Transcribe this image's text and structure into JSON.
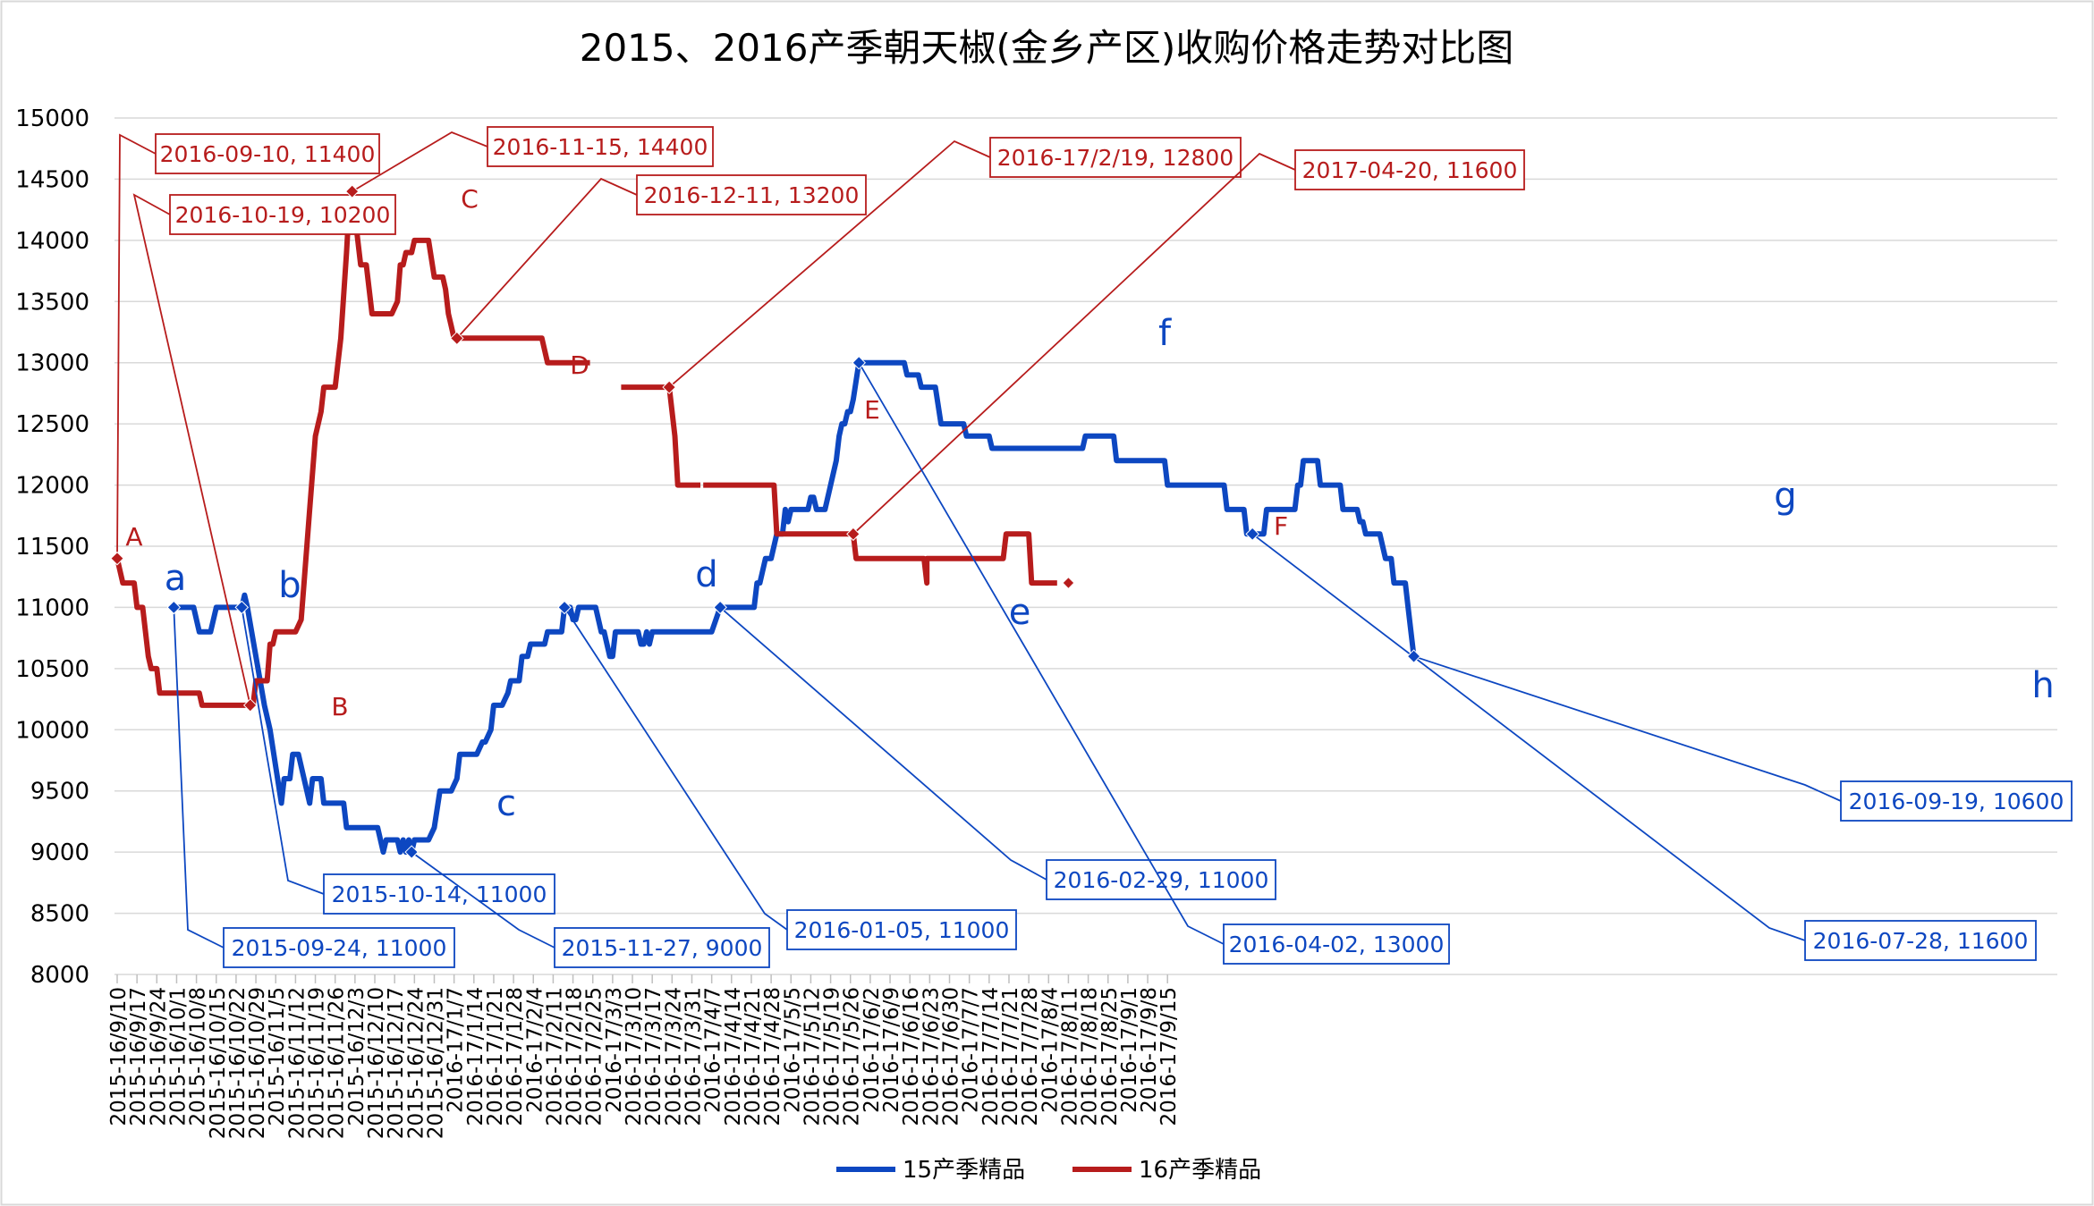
{
  "chart_data": {
    "type": "line",
    "title": "2015、2016产季朝天椒(金乡产区)收购价格走势对比图",
    "xlabel": "",
    "ylabel": "",
    "ylim": [
      8000,
      15000
    ],
    "y_ticks": [
      "8000",
      "8500",
      "9000",
      "9500",
      "10000",
      "10500",
      "11000",
      "11500",
      "12000",
      "12500",
      "13000",
      "13500",
      "14000",
      "14500",
      "15000"
    ],
    "grid": "horizontal",
    "legend_position": "bottom",
    "x_labels": [
      "2015-16/9/10",
      "2015-16/9/17",
      "2015-16/9/24",
      "2015-16/10/1",
      "2015-16/10/8",
      "2015-16/10/15",
      "2015-16/10/22",
      "2015-16/10/29",
      "2015-16/11/5",
      "2015-16/11/12",
      "2015-16/11/19",
      "2015-16/11/26",
      "2015-16/12/3",
      "2015-16/12/10",
      "2015-16/12/17",
      "2015-16/12/24",
      "2015-16/12/31",
      "2016-17/1/7",
      "2016-17/1/14",
      "2016-17/1/21",
      "2016-17/1/28",
      "2016-17/2/4",
      "2016-17/2/11",
      "2016-17/2/18",
      "2016-17/2/25",
      "2016-17/3/3",
      "2016-17/3/10",
      "2016-17/3/17",
      "2016-17/3/24",
      "2016-17/3/31",
      "2016-17/4/7",
      "2016-17/4/14",
      "2016-17/4/21",
      "2016-17/4/28",
      "2016-17/5/5",
      "2016-17/5/12",
      "2016-17/5/19",
      "2016-17/5/26",
      "2016-17/6/2",
      "2016-17/6/9",
      "2016-17/6/16",
      "2016-17/6/23",
      "2016-17/6/30",
      "2016-17/7/7",
      "2016-17/7/14",
      "2016-17/7/21",
      "2016-17/7/28",
      "2016-17/8/4",
      "2016-17/8/11",
      "2016-17/8/18",
      "2016-17/8/25",
      "2016-17/9/1",
      "2016-17/9/8",
      "2016-17/9/15"
    ],
    "x_unit": "day index (0 = 2015-16/9/10, ticks every 7 days)",
    "series": [
      {
        "name": "15产季精品",
        "color": "#0D47C1",
        "points": [
          [
            20,
            11000
          ],
          [
            27,
            11000
          ],
          [
            29,
            10800
          ],
          [
            33,
            10800
          ],
          [
            35,
            11000
          ],
          [
            44,
            11000
          ],
          [
            45,
            11100
          ],
          [
            46,
            11000
          ],
          [
            49,
            10600
          ],
          [
            52,
            10200
          ],
          [
            54,
            10000
          ],
          [
            56,
            9700
          ],
          [
            58,
            9400
          ],
          [
            59,
            9600
          ],
          [
            61,
            9600
          ],
          [
            62,
            9800
          ],
          [
            64,
            9800
          ],
          [
            66,
            9600
          ],
          [
            68,
            9400
          ],
          [
            69,
            9600
          ],
          [
            72,
            9600
          ],
          [
            73,
            9400
          ],
          [
            80,
            9400
          ],
          [
            81,
            9200
          ],
          [
            92,
            9200
          ],
          [
            94,
            9000
          ],
          [
            95,
            9100
          ],
          [
            99,
            9100
          ],
          [
            100,
            9000
          ],
          [
            101,
            9100
          ],
          [
            102,
            9000
          ],
          [
            103,
            9100
          ],
          [
            104,
            9000
          ],
          [
            105,
            9100
          ],
          [
            110,
            9100
          ],
          [
            112,
            9200
          ],
          [
            114,
            9500
          ],
          [
            118,
            9500
          ],
          [
            120,
            9600
          ],
          [
            121,
            9800
          ],
          [
            127,
            9800
          ],
          [
            129,
            9900
          ],
          [
            130,
            9900
          ],
          [
            132,
            10000
          ],
          [
            133,
            10200
          ],
          [
            136,
            10200
          ],
          [
            138,
            10300
          ],
          [
            139,
            10400
          ],
          [
            142,
            10400
          ],
          [
            143,
            10600
          ],
          [
            145,
            10600
          ],
          [
            146,
            10700
          ],
          [
            151,
            10700
          ],
          [
            152,
            10800
          ],
          [
            157,
            10800
          ],
          [
            158,
            11000
          ],
          [
            159,
            11000
          ],
          [
            160,
            11000
          ],
          [
            161,
            10900
          ],
          [
            162,
            10900
          ],
          [
            163,
            11000
          ],
          [
            164,
            11000
          ],
          [
            165,
            11000
          ],
          [
            169,
            11000
          ],
          [
            171,
            10800
          ],
          [
            172,
            10800
          ],
          [
            174,
            10600
          ],
          [
            175,
            10600
          ],
          [
            176,
            10800
          ],
          [
            184,
            10800
          ],
          [
            185,
            10700
          ],
          [
            186,
            10700
          ],
          [
            187,
            10800
          ],
          [
            188,
            10700
          ],
          [
            189,
            10800
          ],
          [
            210,
            10800
          ],
          [
            213,
            11000
          ],
          [
            225,
            11000
          ],
          [
            226,
            11200
          ],
          [
            227,
            11200
          ],
          [
            229,
            11400
          ],
          [
            231,
            11400
          ],
          [
            233,
            11600
          ],
          [
            235,
            11600
          ],
          [
            236,
            11800
          ],
          [
            237,
            11700
          ],
          [
            238,
            11800
          ],
          [
            244,
            11800
          ],
          [
            245,
            11900
          ],
          [
            246,
            11900
          ],
          [
            247,
            11800
          ],
          [
            250,
            11800
          ],
          [
            252,
            12000
          ],
          [
            254,
            12200
          ],
          [
            255,
            12400
          ],
          [
            256,
            12500
          ],
          [
            257,
            12500
          ],
          [
            258,
            12600
          ],
          [
            259,
            12600
          ],
          [
            260,
            12700
          ],
          [
            262,
            13000
          ],
          [
            263,
            13000
          ],
          [
            278,
            13000
          ],
          [
            279,
            12900
          ],
          [
            283,
            12900
          ],
          [
            284,
            12800
          ],
          [
            289,
            12800
          ],
          [
            291,
            12500
          ],
          [
            299,
            12500
          ],
          [
            300,
            12400
          ],
          [
            308,
            12400
          ],
          [
            309,
            12300
          ],
          [
            341,
            12300
          ],
          [
            342,
            12400
          ],
          [
            352,
            12400
          ],
          [
            353,
            12200
          ],
          [
            370,
            12200
          ],
          [
            371,
            12000
          ],
          [
            391,
            12000
          ],
          [
            392,
            11800
          ],
          [
            398,
            11800
          ],
          [
            399,
            11600
          ],
          [
            405,
            11600
          ],
          [
            406,
            11800
          ],
          [
            416,
            11800
          ],
          [
            417,
            12000
          ],
          [
            418,
            12000
          ],
          [
            419,
            12200
          ],
          [
            424,
            12200
          ],
          [
            425,
            12000
          ],
          [
            432,
            12000
          ],
          [
            433,
            11800
          ],
          [
            438,
            11800
          ],
          [
            439,
            11700
          ],
          [
            440,
            11700
          ],
          [
            441,
            11600
          ],
          [
            446,
            11600
          ],
          [
            448,
            11400
          ],
          [
            450,
            11400
          ],
          [
            451,
            11200
          ],
          [
            455,
            11200
          ],
          [
            456,
            11000
          ],
          [
            458,
            10600
          ]
        ]
      },
      {
        "name": "16产季精品",
        "color": "#B71C1C",
        "segments": [
          [
            [
              0,
              11400
            ],
            [
              2,
              11200
            ],
            [
              6,
              11200
            ],
            [
              7,
              11000
            ],
            [
              9,
              11000
            ],
            [
              11,
              10600
            ],
            [
              12,
              10500
            ],
            [
              14,
              10500
            ],
            [
              15,
              10300
            ],
            [
              29,
              10300
            ],
            [
              30,
              10200
            ],
            [
              47,
              10200
            ],
            [
              48,
              10200
            ],
            [
              49,
              10400
            ],
            [
              53,
              10400
            ],
            [
              54,
              10700
            ],
            [
              55,
              10700
            ],
            [
              56,
              10800
            ],
            [
              63,
              10800
            ],
            [
              65,
              10900
            ],
            [
              66,
              11200
            ],
            [
              68,
              11800
            ],
            [
              70,
              12400
            ],
            [
              72,
              12600
            ],
            [
              73,
              12800
            ],
            [
              77,
              12800
            ],
            [
              79,
              13200
            ],
            [
              81,
              13900
            ],
            [
              82,
              14300
            ],
            [
              83,
              14400
            ],
            [
              84,
              14200
            ],
            [
              85,
              14000
            ],
            [
              86,
              13800
            ],
            [
              88,
              13800
            ],
            [
              89,
              13600
            ],
            [
              90,
              13400
            ],
            [
              97,
              13400
            ],
            [
              99,
              13500
            ],
            [
              100,
              13800
            ],
            [
              101,
              13800
            ],
            [
              102,
              13900
            ],
            [
              104,
              13900
            ],
            [
              105,
              14000
            ],
            [
              110,
              14000
            ],
            [
              112,
              13700
            ],
            [
              115,
              13700
            ],
            [
              116,
              13600
            ],
            [
              117,
              13400
            ],
            [
              118,
              13300
            ],
            [
              119,
              13200
            ],
            [
              120,
              13200
            ],
            [
              121,
              13200
            ],
            [
              150,
              13200
            ],
            [
              152,
              13000
            ],
            [
              167,
              13000
            ]
          ],
          [
            [
              178,
              12800
            ],
            [
              195,
              12800
            ],
            [
              197,
              12400
            ],
            [
              198,
              12000
            ],
            [
              206,
              12000
            ]
          ],
          [
            [
              207,
              12000
            ],
            [
              232,
              12000
            ],
            [
              233,
              11600
            ],
            [
              260,
              11600
            ],
            [
              261,
              11400
            ],
            [
              284,
              11400
            ],
            [
              285,
              11400
            ],
            [
              286,
              11200
            ],
            [
              286,
              11400
            ],
            [
              313,
              11400
            ],
            [
              314,
              11600
            ],
            [
              322,
              11600
            ],
            [
              323,
              11200
            ],
            [
              332,
              11200
            ]
          ]
        ]
      }
    ],
    "markers": [
      {
        "series": "16产季精品",
        "letter": "A",
        "x": 0,
        "y": 11400,
        "label": "2016-09-10, 11400"
      },
      {
        "series": "16产季精品",
        "letter": "B",
        "x": 47,
        "y": 10200,
        "label": "2016-10-19, 10200"
      },
      {
        "series": "16产季精品",
        "letter": "C",
        "x": 83,
        "y": 14400,
        "label": "2016-11-15, 14400"
      },
      {
        "series": "16产季精品",
        "letter": "D",
        "x": 120,
        "y": 13200,
        "label": "2016-12-11, 13200"
      },
      {
        "series": "16产季精品",
        "letter": "E",
        "x": 195,
        "y": 12800,
        "label": "2016-17/2/19, 12800"
      },
      {
        "series": "16产季精品",
        "letter": "F",
        "x": 260,
        "y": 11600,
        "label": "2017-04-20, 11600"
      },
      {
        "series": "15产季精品",
        "letter": "a",
        "x": 20,
        "y": 11000,
        "label": "2015-09-24, 11000"
      },
      {
        "series": "15产季精品",
        "letter": "b",
        "x": 44,
        "y": 11000,
        "label": "2015-10-14, 11000"
      },
      {
        "series": "15产季精品",
        "letter": "c",
        "x": 104,
        "y": 9000,
        "label": "2015-11-27, 9000"
      },
      {
        "series": "15产季精品",
        "letter": "d",
        "x": 158,
        "y": 11000,
        "label": "2016-01-05, 11000"
      },
      {
        "series": "15产季精品",
        "letter": "e",
        "x": 213,
        "y": 11000,
        "label": "2016-02-29, 11000"
      },
      {
        "series": "15产季精品",
        "letter": "f",
        "x": 262,
        "y": 13000,
        "label": "2016-04-02, 13000"
      },
      {
        "series": "15产季精品",
        "letter": "g",
        "x": 401,
        "y": 11600,
        "label": "2016-07-28, 11600"
      },
      {
        "series": "15产季精品",
        "letter": "h",
        "x": 458,
        "y": 10600,
        "label": "2016-09-19, 10600"
      }
    ]
  }
}
